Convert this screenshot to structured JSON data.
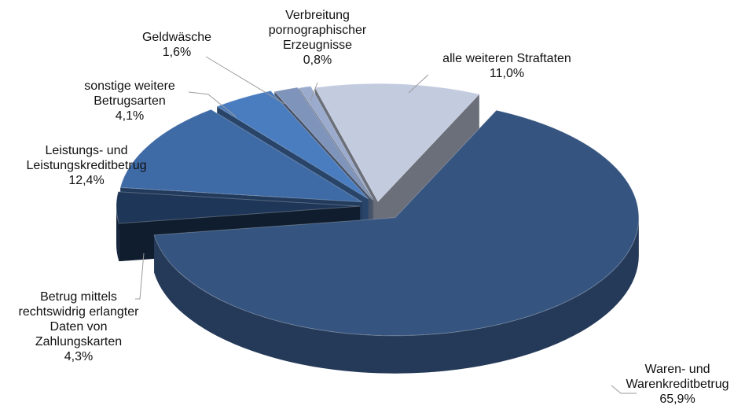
{
  "chart_data": {
    "type": "pie",
    "categories": [
      "alle weiteren Straftaten",
      "Waren- und Warenkreditbetrug",
      "Betrug mittels rechtswidrig erlangter Daten von Zahlungskarten",
      "Leistungs- und Leistungskreditbetrug",
      "sonstige weitere Betrugsarten",
      "Geldwäsche",
      "Verbreitung pornographischer Erzeugnisse"
    ],
    "values": [
      11.0,
      65.9,
      4.3,
      12.4,
      4.1,
      1.6,
      0.8
    ],
    "value_labels": [
      "11,0%",
      "65,9%",
      "4,3%",
      "12,4%",
      "4,1%",
      "1,6%",
      "0,8%"
    ],
    "colors": [
      "#c3cbdf",
      "#35547f",
      "#1e3657",
      "#3e6aa6",
      "#4a7cc0",
      "#7f94ba",
      "#9aabcd"
    ]
  }
}
